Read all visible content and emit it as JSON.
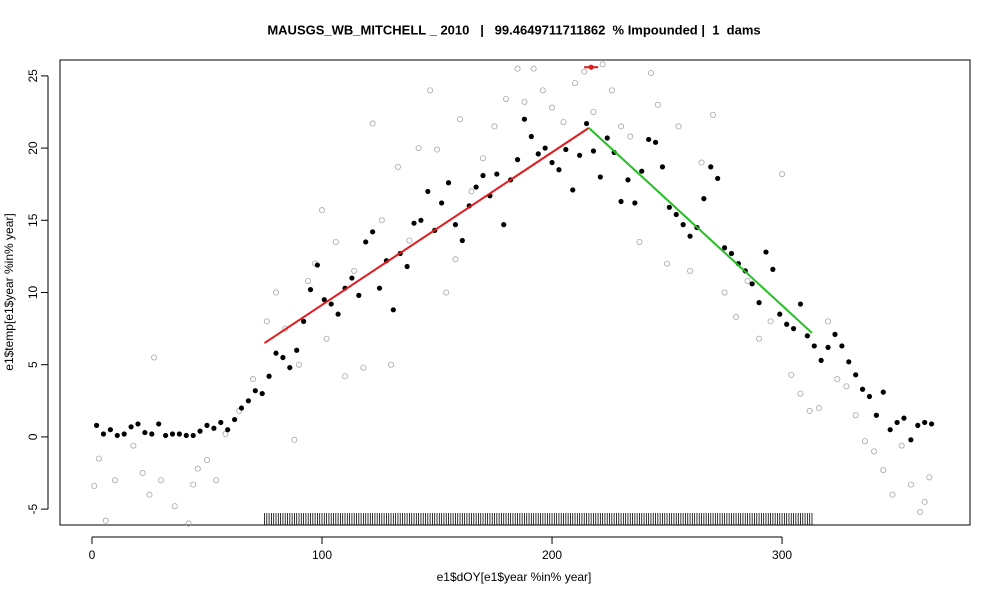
{
  "chart_data": {
    "type": "scatter",
    "title": "MAUSGS_WB_MITCHELL _ 2010   |   99.4649711711862  % Impounded |  1  dams",
    "xlabel": "e1$dOY[e1$year %in% year]",
    "ylabel": "e1$temp[e1$year %in% year]",
    "xlim": [
      -13.9,
      381.7
    ],
    "ylim": [
      -6.1,
      26.1
    ],
    "xticks": [
      0,
      100,
      200,
      300
    ],
    "yticks": [
      -5,
      0,
      5,
      10,
      15,
      20,
      25
    ],
    "series": [
      {
        "style": "open",
        "color": "#a6a6a6",
        "x": [
          1,
          3,
          6,
          10,
          18,
          22,
          25,
          27,
          30,
          36,
          42,
          44,
          46,
          50,
          54,
          58,
          64,
          70,
          76,
          80,
          84,
          88,
          90,
          94,
          97,
          100,
          102,
          106,
          110,
          114,
          118,
          122,
          126,
          130,
          133,
          138,
          142,
          147,
          150,
          154,
          158,
          160,
          165,
          170,
          175,
          180,
          185,
          188,
          192,
          196,
          200,
          205,
          210,
          214,
          218,
          222,
          226,
          230,
          234,
          238,
          243,
          246,
          250,
          255,
          260,
          265,
          270,
          275,
          280,
          285,
          290,
          295,
          300,
          304,
          308,
          312,
          316,
          320,
          324,
          328,
          332,
          336,
          340,
          344,
          348,
          352,
          356,
          360,
          362,
          364
        ],
        "y": [
          -3.4,
          -1.5,
          -5.8,
          -3.0,
          -0.6,
          -2.5,
          -4.0,
          5.5,
          -3.0,
          -4.8,
          -6.0,
          -3.3,
          -2.2,
          -1.6,
          -3.0,
          0.2,
          1.8,
          4.0,
          8.0,
          10.0,
          7.5,
          -0.2,
          5.0,
          10.8,
          12.0,
          15.7,
          6.8,
          13.5,
          4.2,
          11.5,
          4.8,
          21.7,
          15.0,
          5.0,
          18.7,
          13.6,
          20.0,
          24.0,
          19.9,
          10.0,
          12.3,
          22.0,
          17.0,
          19.3,
          21.5,
          23.4,
          25.5,
          23.2,
          25.5,
          24.0,
          22.8,
          21.8,
          24.5,
          25.3,
          22.5,
          25.8,
          24.0,
          21.5,
          20.8,
          13.5,
          25.2,
          23.0,
          12.0,
          21.5,
          11.5,
          19.0,
          22.3,
          10.0,
          8.3,
          10.8,
          6.8,
          8.0,
          18.2,
          4.3,
          3.0,
          1.8,
          2.0,
          8.0,
          4.0,
          3.5,
          1.5,
          -0.3,
          -1.0,
          -2.3,
          -4.0,
          -0.6,
          -3.3,
          -5.2,
          -4.5,
          -2.8
        ]
      },
      {
        "style": "filled",
        "color": "#000000",
        "x": [
          2,
          5,
          8,
          11,
          14,
          17,
          20,
          23,
          26,
          29,
          32,
          35,
          38,
          41,
          44,
          47,
          50,
          53,
          56,
          59,
          62,
          65,
          68,
          71,
          74,
          77,
          80,
          83,
          86,
          89,
          92,
          95,
          98,
          101,
          104,
          107,
          110,
          113,
          116,
          119,
          122,
          125,
          128,
          131,
          134,
          137,
          140,
          143,
          146,
          149,
          152,
          155,
          158,
          161,
          164,
          167,
          170,
          173,
          176,
          179,
          182,
          185,
          188,
          191,
          194,
          197,
          200,
          203,
          206,
          209,
          212,
          215,
          218,
          221,
          224,
          227,
          230,
          233,
          236,
          239,
          242,
          245,
          248,
          251,
          254,
          257,
          260,
          263,
          266,
          269,
          272,
          275,
          278,
          281,
          284,
          287,
          290,
          293,
          296,
          299,
          302,
          305,
          308,
          311,
          314,
          317,
          320,
          323,
          326,
          329,
          332,
          335,
          338,
          341,
          344,
          347,
          350,
          353,
          356,
          359,
          362,
          365
        ],
        "y": [
          0.8,
          0.2,
          0.5,
          0.1,
          0.2,
          0.7,
          0.9,
          0.3,
          0.2,
          0.9,
          0.1,
          0.2,
          0.2,
          0.1,
          0.1,
          0.4,
          0.8,
          0.6,
          1.0,
          0.5,
          1.2,
          2.0,
          2.5,
          3.2,
          3.0,
          4.2,
          5.8,
          5.5,
          4.8,
          6.0,
          8.0,
          10.2,
          11.9,
          9.5,
          9.2,
          8.5,
          10.3,
          11.0,
          9.8,
          13.5,
          14.2,
          10.3,
          12.2,
          8.8,
          12.7,
          11.8,
          14.8,
          15.0,
          17.0,
          14.3,
          16.2,
          17.6,
          14.7,
          13.6,
          16.0,
          17.3,
          18.1,
          16.7,
          18.2,
          14.7,
          17.8,
          19.2,
          22.0,
          20.8,
          19.6,
          20.0,
          19.0,
          18.5,
          19.9,
          17.1,
          19.5,
          21.7,
          19.8,
          18.0,
          20.7,
          19.7,
          16.3,
          17.8,
          16.2,
          18.4,
          20.6,
          20.4,
          18.7,
          15.9,
          15.4,
          14.7,
          13.9,
          14.5,
          16.5,
          18.7,
          17.9,
          13.1,
          12.7,
          12.0,
          11.5,
          10.6,
          9.3,
          12.8,
          11.6,
          8.5,
          7.8,
          7.5,
          9.2,
          7.0,
          6.3,
          5.3,
          6.2,
          7.1,
          6.3,
          5.2,
          4.3,
          3.3,
          2.8,
          1.5,
          3.1,
          0.5,
          1.0,
          1.3,
          -0.2,
          0.8,
          1.0,
          0.9
        ]
      }
    ],
    "lines": [
      {
        "color": "#e31a1c",
        "x": [
          75,
          216
        ],
        "y": [
          6.5,
          21.4
        ]
      },
      {
        "color": "#22c022",
        "x": [
          216,
          313
        ],
        "y": [
          21.4,
          7.2
        ]
      }
    ],
    "marker": {
      "color": "#e31a1c",
      "x": [
        217
      ],
      "y": [
        25.6
      ]
    },
    "rug": {
      "color": "#000000",
      "x": [
        75,
        76,
        77,
        78,
        79,
        80,
        81,
        82,
        83,
        84,
        85,
        86,
        87,
        88,
        89,
        90,
        91,
        92,
        93,
        94,
        95,
        96,
        97,
        98,
        99,
        100,
        101,
        102,
        103,
        104,
        105,
        106,
        107,
        108,
        109,
        110,
        111,
        112,
        113,
        114,
        115,
        116,
        117,
        118,
        119,
        120,
        121,
        122,
        123,
        124,
        125,
        126,
        127,
        128,
        129,
        130,
        131,
        132,
        133,
        134,
        135,
        136,
        137,
        138,
        139,
        140,
        141,
        142,
        143,
        144,
        145,
        146,
        147,
        148,
        149,
        150,
        151,
        152,
        153,
        154,
        155,
        156,
        157,
        158,
        159,
        160,
        161,
        162,
        163,
        164,
        165,
        166,
        167,
        168,
        169,
        170,
        171,
        172,
        173,
        174,
        175,
        176,
        177,
        178,
        179,
        180,
        181,
        182,
        183,
        184,
        185,
        186,
        187,
        188,
        189,
        190,
        191,
        192,
        193,
        194,
        195,
        196,
        197,
        198,
        199,
        200,
        201,
        202,
        203,
        204,
        205,
        206,
        207,
        208,
        209,
        210,
        211,
        212,
        213,
        214,
        215,
        216,
        217,
        218,
        219,
        220,
        221,
        222,
        223,
        224,
        225,
        226,
        227,
        228,
        229,
        230,
        231,
        232,
        233,
        234,
        235,
        236,
        237,
        238,
        239,
        240,
        241,
        242,
        243,
        244,
        245,
        246,
        247,
        248,
        249,
        250,
        251,
        252,
        253,
        254,
        255,
        256,
        257,
        258,
        259,
        260,
        261,
        262,
        263,
        264,
        265,
        266,
        267,
        268,
        269,
        270,
        271,
        272,
        273,
        274,
        275,
        276,
        277,
        278,
        279,
        280,
        281,
        282,
        283,
        284,
        285,
        286,
        287,
        288,
        289,
        290,
        291,
        292,
        293,
        294,
        295,
        296,
        297,
        298,
        299,
        300,
        301,
        302,
        303,
        304,
        305,
        306,
        307,
        308,
        309,
        310,
        311,
        312,
        313
      ]
    }
  }
}
